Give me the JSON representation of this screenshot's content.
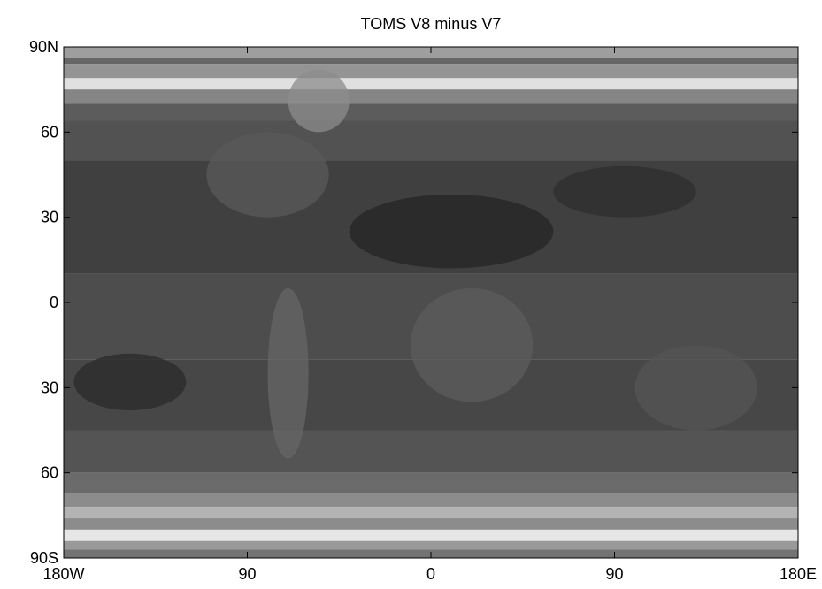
{
  "chart_data": {
    "type": "heatmap",
    "title": "TOMS V8 minus V7",
    "xlabel": "",
    "ylabel": "",
    "xlim": [
      -180,
      180
    ],
    "ylim": [
      -90,
      90
    ],
    "x_ticks": [
      {
        "value": -180,
        "label": "180W"
      },
      {
        "value": -90,
        "label": "90"
      },
      {
        "value": 0,
        "label": "0"
      },
      {
        "value": 90,
        "label": "90"
      },
      {
        "value": 180,
        "label": "180E"
      }
    ],
    "y_ticks": [
      {
        "value": 90,
        "label": "90N"
      },
      {
        "value": 60,
        "label": "60"
      },
      {
        "value": 30,
        "label": "30"
      },
      {
        "value": 0,
        "label": "0"
      },
      {
        "value": -30,
        "label": "30"
      },
      {
        "value": -60,
        "label": "60"
      },
      {
        "value": -90,
        "label": "90S"
      }
    ],
    "grid": false,
    "colormap": "gray",
    "zonal_bands": [
      {
        "lat_top": 90,
        "lat_bottom": 86,
        "shade": 0.62
      },
      {
        "lat_top": 86,
        "lat_bottom": 84,
        "shade": 0.4
      },
      {
        "lat_top": 84,
        "lat_bottom": 79,
        "shade": 0.58
      },
      {
        "lat_top": 79,
        "lat_bottom": 75,
        "shade": 0.88
      },
      {
        "lat_top": 75,
        "lat_bottom": 70,
        "shade": 0.52
      },
      {
        "lat_top": 70,
        "lat_bottom": 64,
        "shade": 0.36
      },
      {
        "lat_top": 64,
        "lat_bottom": 50,
        "shade": 0.32
      },
      {
        "lat_top": 50,
        "lat_bottom": 10,
        "shade": 0.25
      },
      {
        "lat_top": 10,
        "lat_bottom": -20,
        "shade": 0.3
      },
      {
        "lat_top": -20,
        "lat_bottom": -45,
        "shade": 0.28
      },
      {
        "lat_top": -45,
        "lat_bottom": -60,
        "shade": 0.33
      },
      {
        "lat_top": -60,
        "lat_bottom": -67,
        "shade": 0.42
      },
      {
        "lat_top": -67,
        "lat_bottom": -72,
        "shade": 0.55
      },
      {
        "lat_top": -72,
        "lat_bottom": -76,
        "shade": 0.7
      },
      {
        "lat_top": -76,
        "lat_bottom": -80,
        "shade": 0.55
      },
      {
        "lat_top": -80,
        "lat_bottom": -84,
        "shade": 0.9
      },
      {
        "lat_top": -84,
        "lat_bottom": -87,
        "shade": 0.6
      },
      {
        "lat_top": -87,
        "lat_bottom": -90,
        "shade": 0.45
      }
    ],
    "regions": [
      {
        "lon": [
          -175,
          -120
        ],
        "lat": [
          -38,
          -18
        ],
        "shade": 0.16
      },
      {
        "lon": [
          -40,
          60
        ],
        "lat": [
          12,
          38
        ],
        "shade": 0.14
      },
      {
        "lon": [
          60,
          130
        ],
        "lat": [
          30,
          48
        ],
        "shade": 0.18
      },
      {
        "lon": [
          -110,
          -50
        ],
        "lat": [
          30,
          60
        ],
        "shade": 0.35
      },
      {
        "lon": [
          -80,
          -60
        ],
        "lat": [
          -55,
          5
        ],
        "shade": 0.4
      },
      {
        "lon": [
          -70,
          -40
        ],
        "lat": [
          60,
          82
        ],
        "shade": 0.55
      },
      {
        "lon": [
          100,
          160
        ],
        "lat": [
          -45,
          -15
        ],
        "shade": 0.33
      },
      {
        "lon": [
          -10,
          50
        ],
        "lat": [
          -35,
          5
        ],
        "shade": 0.36
      }
    ]
  }
}
